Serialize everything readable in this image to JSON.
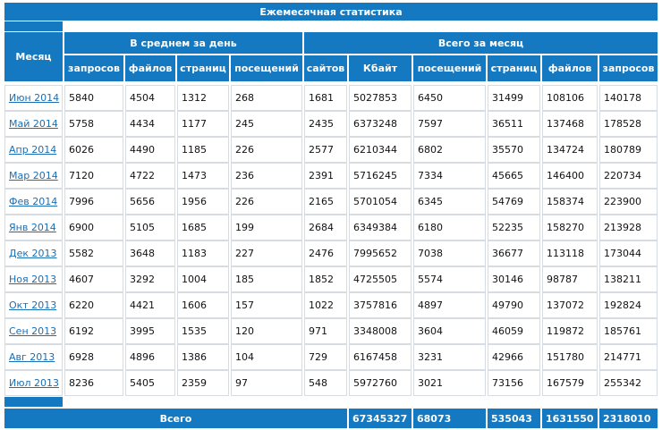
{
  "title": "Ежемесячная статистика",
  "header": {
    "month": "Месяц",
    "daily_avg": "В среднем за день",
    "monthly_total": "Всего за месяц",
    "daily_columns": [
      "запросов",
      "файлов",
      "страниц",
      "посещений"
    ],
    "monthly_columns": [
      "сайтов",
      "Кбайт",
      "посещений",
      "страниц",
      "файлов",
      "запросов"
    ]
  },
  "rows": [
    {
      "month": "Июн 2014",
      "values": [
        5840,
        4504,
        1312,
        268,
        1681,
        5027853,
        6450,
        31499,
        108106,
        140178
      ]
    },
    {
      "month": "Май 2014",
      "values": [
        5758,
        4434,
        1177,
        245,
        2435,
        6373248,
        7597,
        36511,
        137468,
        178528
      ]
    },
    {
      "month": "Апр 2014",
      "values": [
        6026,
        4490,
        1185,
        226,
        2577,
        6210344,
        6802,
        35570,
        134724,
        180789
      ]
    },
    {
      "month": "Мар 2014",
      "values": [
        7120,
        4722,
        1473,
        236,
        2391,
        5716245,
        7334,
        45665,
        146400,
        220734
      ]
    },
    {
      "month": "Фев 2014",
      "values": [
        7996,
        5656,
        1956,
        226,
        2165,
        5701054,
        6345,
        54769,
        158374,
        223900
      ]
    },
    {
      "month": "Янв 2014",
      "values": [
        6900,
        5105,
        1685,
        199,
        2684,
        6349384,
        6180,
        52235,
        158270,
        213928
      ]
    },
    {
      "month": "Дек 2013",
      "values": [
        5582,
        3648,
        1183,
        227,
        2476,
        7995652,
        7038,
        36677,
        113118,
        173044
      ]
    },
    {
      "month": "Ноя 2013",
      "values": [
        4607,
        3292,
        1004,
        185,
        1852,
        4725505,
        5574,
        30146,
        98787,
        138211
      ]
    },
    {
      "month": "Окт 2013",
      "values": [
        6220,
        4421,
        1606,
        157,
        1022,
        3757816,
        4897,
        49790,
        137072,
        192824
      ]
    },
    {
      "month": "Сен 2013",
      "values": [
        6192,
        3995,
        1535,
        120,
        971,
        3348008,
        3604,
        46059,
        119872,
        185761
      ]
    },
    {
      "month": "Авг 2013",
      "values": [
        6928,
        4896,
        1386,
        104,
        729,
        6167458,
        3231,
        42966,
        151780,
        214771
      ]
    },
    {
      "month": "Июл 2013",
      "values": [
        8236,
        5405,
        2359,
        97,
        548,
        5972760,
        3021,
        73156,
        167579,
        255342
      ]
    }
  ],
  "totals": {
    "label": "Всего",
    "values": [
      67345327,
      68073,
      535043,
      1631550,
      2318010
    ]
  }
}
